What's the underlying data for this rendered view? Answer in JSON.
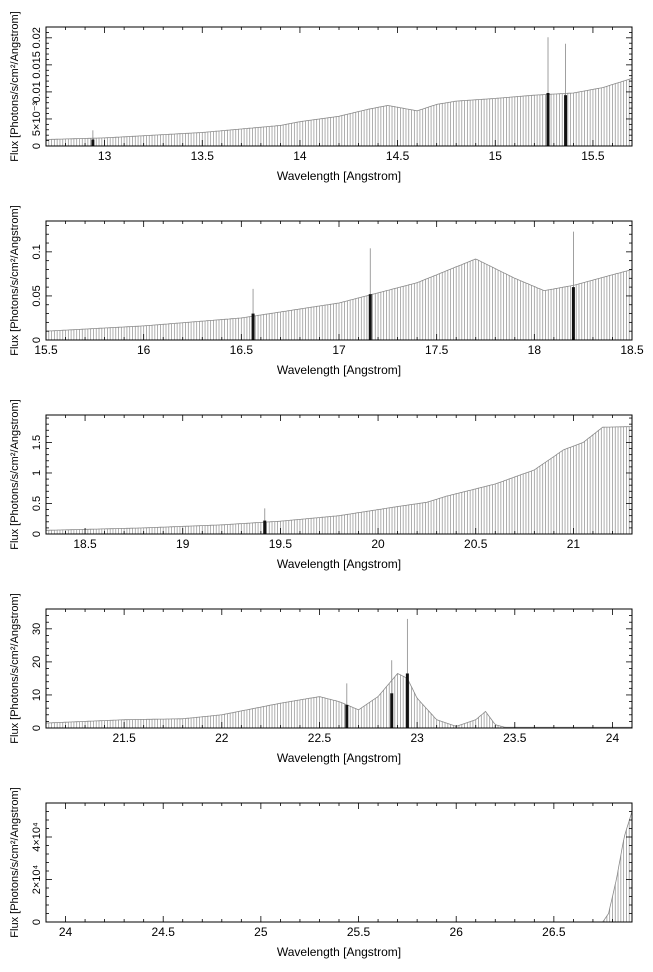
{
  "chart_data": [
    {
      "type": "bar",
      "xlabel": "Wavelength [Angstrom]",
      "ylabel": "Flux [Photons/s/cm²/Angstrom]",
      "xlim": [
        12.7,
        15.7
      ],
      "ylim": [
        0,
        0.022
      ],
      "xticks": [
        13,
        13.5,
        14,
        14.5,
        15,
        15.5
      ],
      "yticks": [
        0,
        0.005,
        0.01,
        0.015,
        0.02
      ],
      "ytick_labels": [
        "0",
        "5×10⁻³",
        "0.01",
        "0.015",
        "0.02"
      ],
      "continuum": {
        "x": [
          12.7,
          13.0,
          13.5,
          13.9,
          14.0,
          14.2,
          14.35,
          14.45,
          14.6,
          14.7,
          14.8,
          15.0,
          15.2,
          15.4,
          15.55,
          15.7
        ],
        "y": [
          0.0012,
          0.0015,
          0.0025,
          0.0038,
          0.0045,
          0.0055,
          0.0068,
          0.0075,
          0.0065,
          0.0077,
          0.0083,
          0.0088,
          0.0094,
          0.0098,
          0.0108,
          0.0125
        ]
      },
      "lines": [
        {
          "x": 12.94,
          "value": 0.0012,
          "error": 0.0017
        },
        {
          "x": 15.27,
          "value": 0.0098,
          "error": 0.0103
        },
        {
          "x": 15.36,
          "value": 0.0094,
          "error": 0.0095
        }
      ]
    },
    {
      "type": "bar",
      "xlabel": "Wavelength [Angstrom]",
      "ylabel": "Flux [Photons/s/cm²/Angstrom]",
      "xlim": [
        15.5,
        18.5
      ],
      "ylim": [
        0,
        0.135
      ],
      "xticks": [
        15.5,
        16,
        16.5,
        17,
        17.5,
        18,
        18.5
      ],
      "yticks": [
        0,
        0.05,
        0.1
      ],
      "ytick_labels": [
        "0",
        "0.05",
        "0.1"
      ],
      "continuum": {
        "x": [
          15.5,
          16.0,
          16.5,
          17.0,
          17.4,
          17.7,
          17.9,
          18.05,
          18.2,
          18.5
        ],
        "y": [
          0.01,
          0.016,
          0.025,
          0.042,
          0.065,
          0.092,
          0.07,
          0.056,
          0.062,
          0.08
        ]
      },
      "lines": [
        {
          "x": 16.56,
          "value": 0.03,
          "error": 0.028
        },
        {
          "x": 17.16,
          "value": 0.052,
          "error": 0.052
        },
        {
          "x": 18.2,
          "value": 0.06,
          "error": 0.063
        }
      ]
    },
    {
      "type": "bar",
      "xlabel": "Wavelength [Angstrom]",
      "ylabel": "Flux [Photons/s/cm²/Angstrom]",
      "xlim": [
        18.3,
        21.3
      ],
      "ylim": [
        0,
        1.95
      ],
      "xticks": [
        18.5,
        19,
        19.5,
        20,
        20.5,
        21
      ],
      "yticks": [
        0,
        0.5,
        1,
        1.5
      ],
      "ytick_labels": [
        "0",
        "0.5",
        "1",
        "1.5"
      ],
      "continuum": {
        "x": [
          18.3,
          18.8,
          19.2,
          19.5,
          19.8,
          20.1,
          20.25,
          20.35,
          20.6,
          20.8,
          20.95,
          21.05,
          21.15,
          21.3
        ],
        "y": [
          0.06,
          0.1,
          0.15,
          0.21,
          0.3,
          0.45,
          0.52,
          0.62,
          0.82,
          1.05,
          1.38,
          1.5,
          1.75,
          1.76
        ]
      },
      "lines": [
        {
          "x": 19.42,
          "value": 0.22,
          "error": 0.2
        }
      ]
    },
    {
      "type": "bar",
      "xlabel": "Wavelength [Angstrom]",
      "ylabel": "Flux [Photons/s/cm²/Angstrom]",
      "xlim": [
        21.1,
        24.1
      ],
      "ylim": [
        0,
        36
      ],
      "xticks": [
        21.5,
        22,
        22.5,
        23,
        23.5,
        24
      ],
      "yticks": [
        0,
        10,
        20,
        30
      ],
      "ytick_labels": [
        "0",
        "10",
        "20",
        "30"
      ],
      "continuum": {
        "x": [
          21.1,
          21.5,
          21.8,
          22.0,
          22.3,
          22.5,
          22.6,
          22.7,
          22.8,
          22.9,
          22.95,
          23.0,
          23.1,
          23.2,
          23.3,
          23.35,
          23.4,
          23.45,
          24.1
        ],
        "y": [
          1.5,
          2.5,
          2.8,
          4,
          7.5,
          9.5,
          8,
          5.5,
          9.5,
          16.5,
          15,
          9,
          2.5,
          0.5,
          2.5,
          5,
          1,
          0.2,
          0.2
        ]
      },
      "lines": [
        {
          "x": 22.64,
          "value": 7,
          "error": 6.5
        },
        {
          "x": 22.87,
          "value": 10.5,
          "error": 10
        },
        {
          "x": 22.95,
          "value": 16.5,
          "error": 16.5
        }
      ]
    },
    {
      "type": "bar",
      "xlabel": "Wavelength [Angstrom]",
      "ylabel": "Flux [Photons/s/cm²/Angstrom]",
      "xlim": [
        23.9,
        26.9
      ],
      "ylim": [
        0,
        56000
      ],
      "xticks": [
        24,
        24.5,
        25,
        25.5,
        26,
        26.5
      ],
      "yticks": [
        0,
        20000,
        40000
      ],
      "ytick_labels": [
        "0",
        "2×10⁴",
        "4×10⁴"
      ],
      "continuum": {
        "x": [
          23.9,
          26.75,
          26.78,
          26.82,
          26.86,
          26.9
        ],
        "y": [
          0,
          0,
          4000,
          20000,
          40000,
          52000
        ]
      },
      "lines": []
    }
  ]
}
